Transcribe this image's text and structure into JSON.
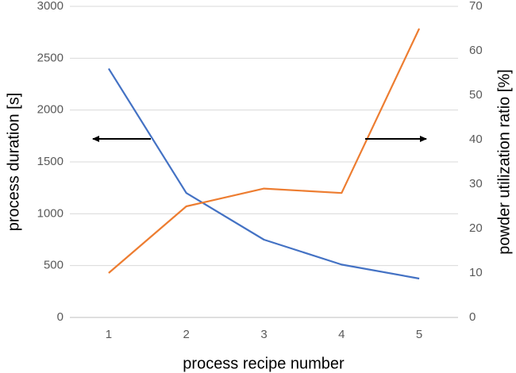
{
  "chart_data": {
    "type": "line",
    "xlabel": "process recipe number",
    "ylabel": "process duration [s]",
    "y2label": "powder utilization ratio [%]",
    "categories": [
      "1",
      "2",
      "3",
      "4",
      "5"
    ],
    "series": [
      {
        "name": "process duration",
        "color": "#4472c4",
        "values": [
          2400,
          1200,
          750,
          510,
          375
        ]
      },
      {
        "name": "powder utilization ratio",
        "color": "#ed7d31",
        "axis": "y2",
        "values": [
          10,
          25,
          29,
          28,
          65
        ]
      }
    ],
    "ylim": [
      0,
      3000
    ],
    "yticks": [
      0,
      500,
      1000,
      1500,
      2000,
      2500,
      3000
    ],
    "y2lim": [
      0,
      70
    ],
    "y2ticks": [
      0,
      10,
      20,
      30,
      40,
      50,
      60,
      70
    ],
    "grid": true
  }
}
